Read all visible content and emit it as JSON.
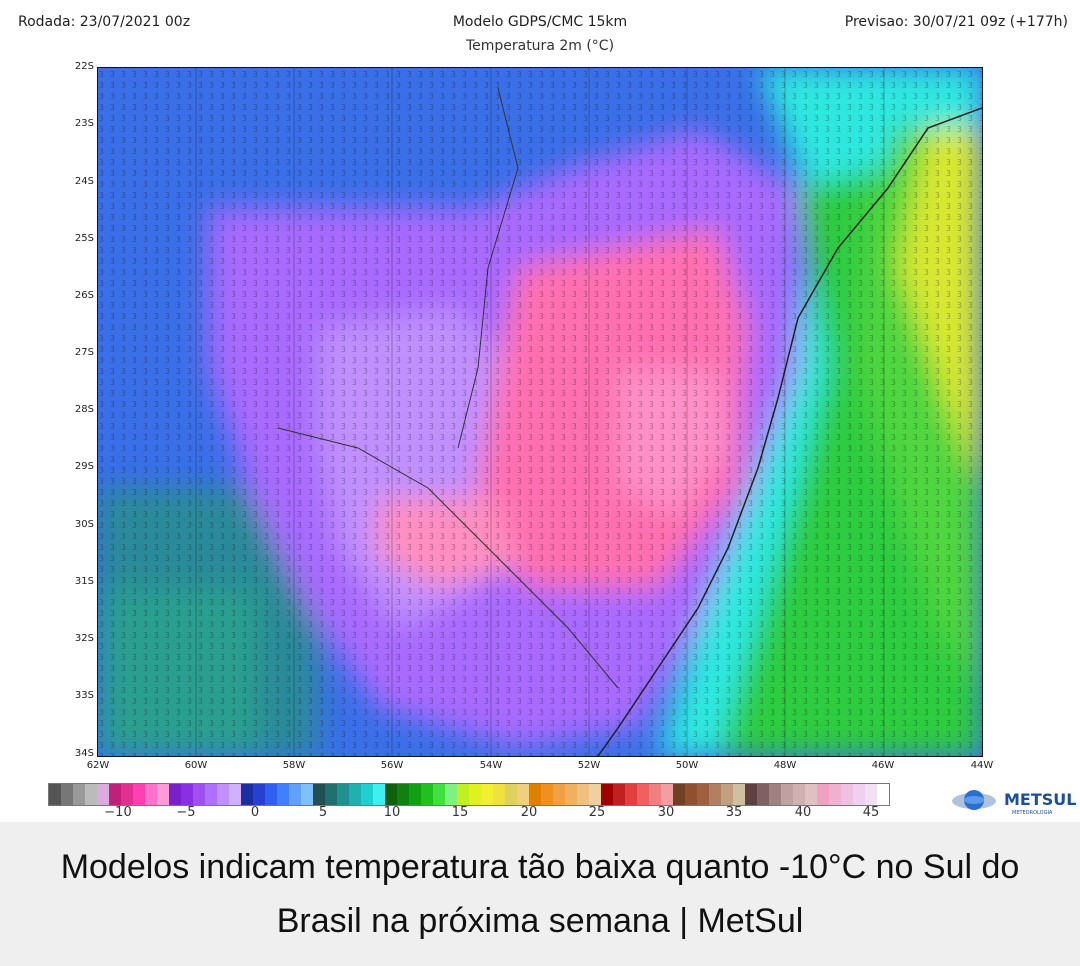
{
  "header": {
    "left": "Rodada: 23/07/2021 00z",
    "center": "Modelo GDPS/CMC 15km",
    "subtitle": "Temperatura 2m (°C)",
    "right": "Previsao: 30/07/21 09z (+177h)"
  },
  "map": {
    "lat_labels": [
      "22S",
      "23S",
      "24S",
      "25S",
      "26S",
      "27S",
      "28S",
      "29S",
      "30S",
      "31S",
      "32S",
      "33S",
      "34S"
    ],
    "lon_labels": [
      "62W",
      "60W",
      "58W",
      "56W",
      "54W",
      "52W",
      "50W",
      "48W",
      "46W",
      "44W"
    ],
    "extent": {
      "lon_min": -62,
      "lon_max": -44,
      "lat_min": -34,
      "lat_max": -22
    },
    "min_temp_shown": -10,
    "max_temp_shown": 17,
    "colors": {
      "cold_extreme": "#ff6fb0",
      "cold": "#a86bff",
      "mild": "#3a6fe8",
      "cool": "#5aa8f0",
      "ocean_near": "#2ee8e0",
      "ocean_warm": "#2ecc40",
      "ocean_hot": "#e8e830"
    }
  },
  "colorbar": {
    "labels": [
      "−10",
      "−5",
      "0",
      "5",
      "10",
      "15",
      "20",
      "25",
      "30",
      "35",
      "40",
      "45"
    ],
    "colors": [
      "#555555",
      "#777777",
      "#999999",
      "#bbbbbb",
      "#ddaadd",
      "#c0207a",
      "#e03090",
      "#ff40b0",
      "#ff70c8",
      "#ff9ad8",
      "#7a20c8",
      "#8a30e0",
      "#a050f0",
      "#b070ff",
      "#c090ff",
      "#d0b0ff",
      "#1c2fa0",
      "#2840d0",
      "#3060f0",
      "#4080ff",
      "#60a0ff",
      "#80c0ff",
      "#205050",
      "#207070",
      "#209090",
      "#20b0b0",
      "#20d0d0",
      "#40f0f0",
      "#106010",
      "#108010",
      "#10a010",
      "#20c020",
      "#40e040",
      "#80f080",
      "#c0f020",
      "#e0f020",
      "#f0f030",
      "#f0e040",
      "#e0d060",
      "#f0d080",
      "#e08000",
      "#f09020",
      "#f0a040",
      "#f0b060",
      "#f0c080",
      "#f0d0a0",
      "#a00000",
      "#c02020",
      "#e04040",
      "#f06060",
      "#f08080",
      "#f0a0a0",
      "#704020",
      "#905030",
      "#a06040",
      "#b08060",
      "#c0a080",
      "#d0c0a0",
      "#604040",
      "#806060",
      "#a08080",
      "#c0a0a0",
      "#d0b0b0",
      "#e0c0c0",
      "#f0a0c0",
      "#f0b0d0",
      "#f0c0e0",
      "#f0d0f0",
      "#f0e0f0",
      "#ffffff"
    ]
  },
  "logo": {
    "text": "METSUL",
    "subtext": "METEOROLOGIA",
    "brand_color": "#1a4fa0"
  },
  "caption": {
    "text": "Modelos indicam temperatura tão baixa quanto -10°C no Sul do Brasil na próxima semana | MetSul"
  }
}
